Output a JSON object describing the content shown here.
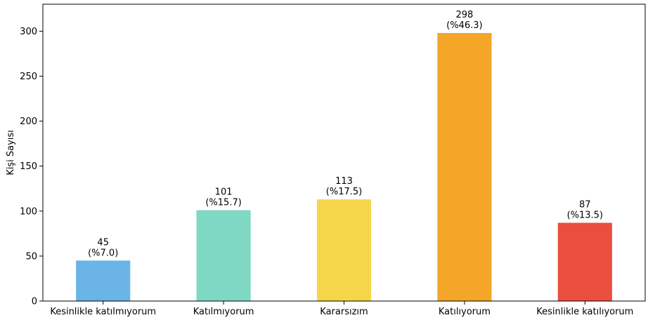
{
  "chart_data": {
    "type": "bar",
    "title": "",
    "xlabel": "",
    "ylabel": "Kişi Sayısı",
    "ylim": [
      0,
      330
    ],
    "yticks": [
      0,
      50,
      100,
      150,
      200,
      250,
      300
    ],
    "grid": false,
    "categories": [
      "Kesinlikle katılmıyorum",
      "Katılmıyorum",
      "Kararsızım",
      "Katılıyorum",
      "Kesinlikle katılıyorum"
    ],
    "values": [
      45,
      101,
      113,
      298,
      87
    ],
    "percent_labels": [
      "(%7.0)",
      "(%15.7)",
      "(%17.5)",
      "(%46.3)",
      "(%13.5)"
    ],
    "colors": [
      "#6ab4e8",
      "#7fd8c4",
      "#f5d54a",
      "#f4a629",
      "#e94e3e"
    ]
  }
}
